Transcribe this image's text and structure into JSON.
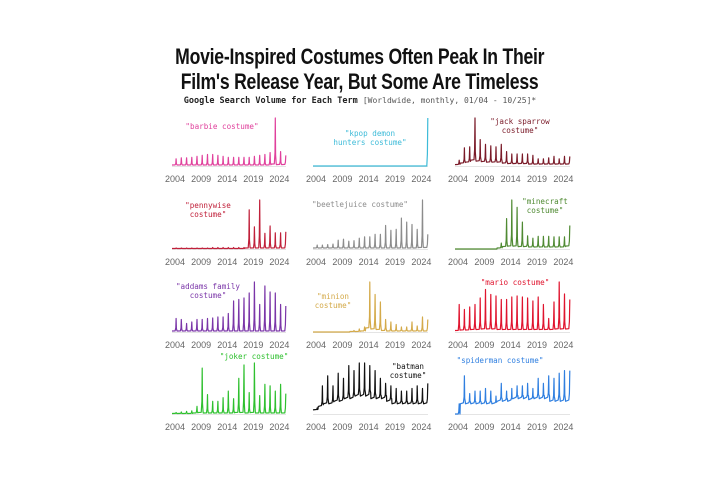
{
  "title_line1": "Movie-Inspired Costumes Often Peak In Their",
  "title_line2": "Film's Release Year, But Some Are Timeless",
  "subtitle": "Google Search Volume for Each Term",
  "subtitle_note": "[Worldwide, monthly, 01/04 - 10/25]*",
  "chart_data": [
    {
      "type": "line",
      "title": "\"barbie costume\"",
      "color": "#e0409c",
      "x_ticks": [
        2004,
        2009,
        2014,
        2019,
        2024
      ],
      "years": [
        2004,
        2025
      ],
      "peaks": [
        15,
        17,
        17,
        18,
        20,
        22,
        24,
        24,
        22,
        20,
        18,
        18,
        18,
        18,
        18,
        20,
        22,
        24,
        28,
        100,
        30,
        22
      ],
      "baseline": [
        2,
        2,
        2,
        2,
        2,
        2,
        2,
        2,
        2,
        2,
        2,
        2,
        2,
        2,
        2,
        2,
        2,
        2,
        2,
        4,
        3,
        3
      ]
    },
    {
      "type": "line",
      "title": "\"kpop demon hunters costume\"",
      "color": "#3dbbd8",
      "x_ticks": [
        2004,
        2009,
        2014,
        2019,
        2024
      ],
      "years": [
        2004,
        2025
      ],
      "peaks": [
        0,
        0,
        0,
        0,
        0,
        0,
        0,
        0,
        0,
        0,
        0,
        0,
        0,
        0,
        0,
        0,
        0,
        0,
        0,
        0,
        0,
        100
      ],
      "baseline": [
        0,
        0,
        0,
        0,
        0,
        0,
        0,
        0,
        0,
        0,
        0,
        0,
        0,
        0,
        0,
        0,
        0,
        0,
        0,
        0,
        0,
        0
      ]
    },
    {
      "type": "line",
      "title": "\"jack sparrow costume\"",
      "color": "#7a1a28",
      "x_ticks": [
        2004,
        2009,
        2014,
        2019,
        2024
      ],
      "years": [
        2004,
        2025
      ],
      "peaks": [
        12,
        38,
        40,
        100,
        55,
        45,
        42,
        40,
        45,
        30,
        25,
        25,
        25,
        25,
        22,
        15,
        15,
        17,
        20,
        15,
        20,
        20
      ],
      "baseline": [
        3,
        6,
        8,
        12,
        10,
        9,
        8,
        8,
        8,
        6,
        5,
        5,
        5,
        5,
        4,
        4,
        4,
        4,
        4,
        4,
        4,
        4
      ]
    },
    {
      "type": "line",
      "title": "\"pennywise costume\"",
      "color": "#c0203a",
      "x_ticks": [
        2004,
        2009,
        2014,
        2019,
        2024
      ],
      "years": [
        2004,
        2025
      ],
      "peaks": [
        2,
        2,
        2,
        2,
        2,
        2,
        2,
        3,
        3,
        3,
        3,
        3,
        3,
        3,
        80,
        45,
        100,
        32,
        47,
        33,
        33,
        35
      ],
      "baseline": [
        1,
        1,
        1,
        1,
        1,
        1,
        1,
        1,
        1,
        1,
        1,
        1,
        1,
        1,
        2,
        2,
        2,
        2,
        2,
        2,
        2,
        2
      ]
    },
    {
      "type": "line",
      "title": "\"beetlejuice costume\"",
      "color": "#8c8c8c",
      "x_ticks": [
        2004,
        2009,
        2014,
        2019,
        2024
      ],
      "years": [
        2004,
        2025
      ],
      "peaks": [
        8,
        8,
        9,
        10,
        18,
        20,
        16,
        17,
        22,
        25,
        25,
        30,
        30,
        48,
        38,
        40,
        63,
        55,
        50,
        40,
        100,
        30
      ],
      "baseline": [
        2,
        2,
        2,
        2,
        2,
        2,
        2,
        2,
        2,
        2,
        2,
        2,
        2,
        2,
        2,
        2,
        2,
        2,
        2,
        2,
        3,
        3
      ]
    },
    {
      "type": "line",
      "title": "\"minecraft costume\"",
      "color": "#4f8a32",
      "x_ticks": [
        2004,
        2009,
        2014,
        2019,
        2024
      ],
      "years": [
        2004,
        2025
      ],
      "peaks": [
        0,
        0,
        0,
        0,
        0,
        0,
        0,
        0,
        12,
        62,
        100,
        85,
        55,
        27,
        22,
        26,
        26,
        26,
        25,
        25,
        25,
        48
      ],
      "baseline": [
        0,
        0,
        0,
        0,
        0,
        0,
        0,
        0,
        2,
        5,
        6,
        6,
        5,
        5,
        4,
        4,
        4,
        4,
        4,
        4,
        4,
        6
      ]
    },
    {
      "type": "line",
      "title": "\"addams family costume\"",
      "color": "#7a35a8",
      "x_ticks": [
        2004,
        2009,
        2014,
        2019,
        2024
      ],
      "years": [
        2004,
        2025
      ],
      "peaks": [
        27,
        25,
        17,
        20,
        25,
        25,
        27,
        28,
        30,
        30,
        37,
        62,
        65,
        68,
        78,
        100,
        55,
        92,
        80,
        78,
        55,
        52
      ],
      "baseline": [
        2,
        2,
        2,
        2,
        2,
        2,
        2,
        2,
        2,
        2,
        2,
        2,
        2,
        2,
        2,
        2,
        2,
        2,
        2,
        2,
        2,
        2
      ]
    },
    {
      "type": "line",
      "title": "\"minion costume\"",
      "color": "#d4aa4a",
      "x_ticks": [
        2004,
        2009,
        2014,
        2019,
        2024
      ],
      "years": [
        2004,
        2025
      ],
      "peaks": [
        0,
        0,
        0,
        0,
        0,
        0,
        0,
        3,
        6,
        10,
        100,
        75,
        60,
        25,
        20,
        15,
        10,
        10,
        20,
        12,
        30,
        25
      ],
      "baseline": [
        0,
        0,
        0,
        0,
        0,
        0,
        0,
        1,
        1,
        2,
        8,
        6,
        5,
        3,
        2,
        2,
        2,
        2,
        2,
        2,
        2,
        2
      ]
    },
    {
      "type": "line",
      "title": "\"mario costume\"",
      "color": "#e0142e",
      "x_ticks": [
        2004,
        2009,
        2014,
        2019,
        2024
      ],
      "years": [
        2004,
        2025
      ],
      "peaks": [
        55,
        45,
        50,
        55,
        68,
        85,
        75,
        72,
        65,
        65,
        70,
        72,
        70,
        68,
        62,
        70,
        55,
        27,
        60,
        100,
        76,
        65
      ],
      "baseline": [
        3,
        4,
        4,
        5,
        5,
        6,
        6,
        6,
        5,
        5,
        5,
        5,
        5,
        5,
        5,
        5,
        5,
        5,
        5,
        6,
        6,
        6
      ]
    },
    {
      "type": "line",
      "title": "\"joker costume\"",
      "color": "#2fc02f",
      "x_ticks": [
        2004,
        2009,
        2014,
        2019,
        2024
      ],
      "years": [
        2004,
        2025
      ],
      "peaks": [
        3,
        4,
        5,
        6,
        15,
        90,
        38,
        25,
        25,
        32,
        45,
        30,
        70,
        96,
        42,
        100,
        36,
        58,
        55,
        45,
        58,
        40
      ],
      "baseline": [
        1,
        1,
        1,
        1,
        2,
        3,
        2,
        2,
        2,
        2,
        2,
        2,
        3,
        3,
        2,
        3,
        2,
        2,
        2,
        2,
        2,
        2
      ]
    },
    {
      "type": "line",
      "title": "\"batman costume\"",
      "color": "#111111",
      "x_ticks": [
        2004,
        2009,
        2014,
        2019,
        2024
      ],
      "years": [
        2004,
        2025
      ],
      "peaks": [
        12,
        55,
        75,
        55,
        80,
        70,
        95,
        85,
        100,
        100,
        95,
        85,
        70,
        60,
        55,
        50,
        45,
        45,
        50,
        55,
        50,
        60
      ],
      "baseline": [
        8,
        15,
        20,
        20,
        25,
        25,
        30,
        30,
        35,
        35,
        35,
        30,
        30,
        30,
        25,
        20,
        20,
        20,
        20,
        20,
        20,
        20
      ]
    },
    {
      "type": "line",
      "title": "\"spiderman costume\"",
      "color": "#2f7fe0",
      "x_ticks": [
        2004,
        2009,
        2014,
        2019,
        2024
      ],
      "years": [
        2004,
        2025
      ],
      "peaks": [
        20,
        75,
        40,
        45,
        45,
        50,
        45,
        35,
        60,
        45,
        50,
        55,
        55,
        60,
        50,
        70,
        60,
        75,
        70,
        80,
        85,
        85
      ],
      "baseline": [
        0,
        20,
        20,
        20,
        20,
        20,
        20,
        20,
        25,
        25,
        25,
        30,
        30,
        30,
        28,
        30,
        30,
        30,
        25,
        25,
        25,
        25
      ]
    }
  ]
}
